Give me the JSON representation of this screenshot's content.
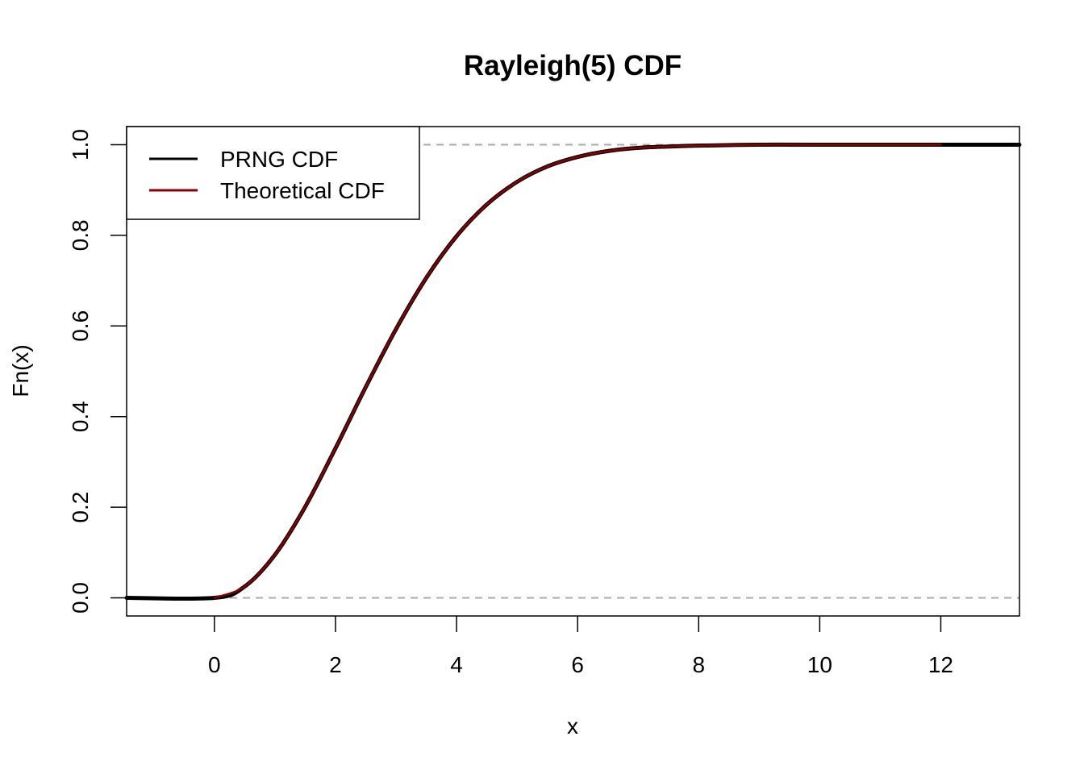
{
  "chart_data": {
    "type": "line",
    "title": "Rayleigh(5) CDF",
    "xlabel": "x",
    "ylabel": "Fn(x)",
    "xlim": [
      -1.45,
      13.3
    ],
    "ylim": [
      -0.04,
      1.04
    ],
    "xticks": [
      0,
      2,
      4,
      6,
      8,
      10,
      12
    ],
    "yticks": [
      0.0,
      0.2,
      0.4,
      0.6,
      0.8,
      1.0
    ],
    "xtick_labels": [
      "0",
      "2",
      "4",
      "6",
      "8",
      "10",
      "12"
    ],
    "ytick_labels": [
      "0.0",
      "0.2",
      "0.4",
      "0.6",
      "0.8",
      "1.0"
    ],
    "hlines": [
      0,
      1
    ],
    "legend": {
      "placement": "top-left",
      "entries": [
        {
          "label": "PRNG CDF",
          "color": "#000000"
        },
        {
          "label": "Theoretical CDF",
          "color": "#8B0000"
        }
      ]
    },
    "series": [
      {
        "name": "PRNG CDF",
        "color": "#000000",
        "x": [
          -1.45,
          0.0,
          0.5,
          1.0,
          1.5,
          2.0,
          2.5,
          3.0,
          3.5,
          4.0,
          4.5,
          5.0,
          5.5,
          6.0,
          6.5,
          7.0,
          7.5,
          8.0,
          9.0,
          10.0,
          12.0,
          13.3
        ],
        "y": [
          0.0,
          0.0,
          0.025,
          0.095,
          0.201,
          0.33,
          0.465,
          0.593,
          0.706,
          0.798,
          0.868,
          0.918,
          0.952,
          0.973,
          0.986,
          0.993,
          0.996,
          0.998,
          1.0,
          1.0,
          1.0,
          1.0
        ]
      },
      {
        "name": "Theoretical CDF",
        "color": "#8B0000",
        "x": [
          0.0,
          0.5,
          1.0,
          1.5,
          2.0,
          2.5,
          3.0,
          3.5,
          4.0,
          4.5,
          5.0,
          5.5,
          6.0,
          6.5,
          7.0,
          7.5,
          8.0,
          9.0,
          10.0,
          12.0
        ],
        "y": [
          0.0,
          0.025,
          0.095,
          0.201,
          0.33,
          0.465,
          0.593,
          0.706,
          0.798,
          0.868,
          0.918,
          0.952,
          0.973,
          0.986,
          0.993,
          0.996,
          0.998,
          1.0,
          1.0,
          1.0
        ]
      }
    ]
  }
}
